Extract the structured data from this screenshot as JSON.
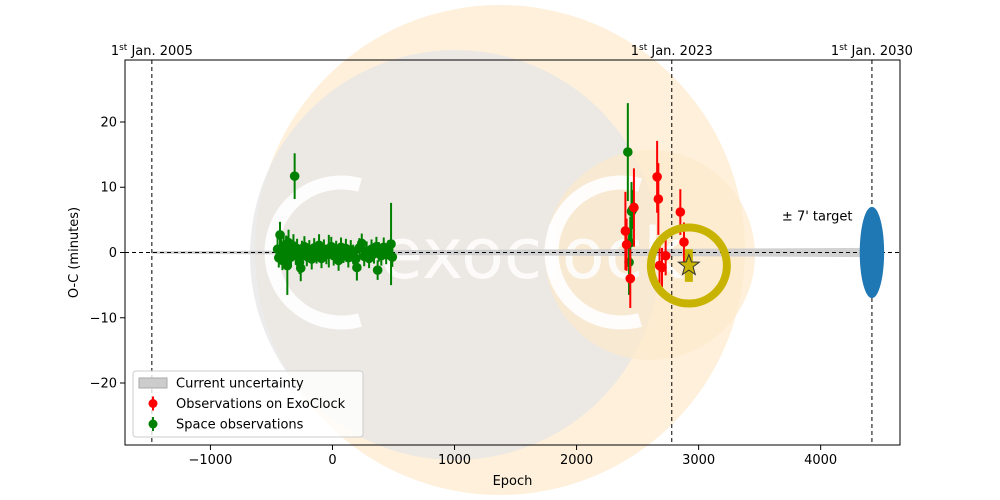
{
  "chart_data": {
    "type": "scatter",
    "title": "",
    "xlabel": "Epoch",
    "ylabel": "O-C (minutes)",
    "xlim": [
      -1700,
      4650
    ],
    "ylim": [
      -29.5,
      29.5
    ],
    "xticks": [
      -1000,
      0,
      1000,
      2000,
      3000,
      4000
    ],
    "yticks": [
      -20,
      -10,
      0,
      10,
      20
    ],
    "xtick_labels": [
      "−1000",
      "0",
      "1000",
      "2000",
      "3000",
      "4000"
    ],
    "ytick_labels": [
      "−20",
      "−10",
      "0",
      "10",
      "20"
    ],
    "date_markers": [
      {
        "label": "Jan. 2005",
        "sup": "st",
        "prefix": "1",
        "epoch": -1480
      },
      {
        "label": "Jan. 2023",
        "sup": "st",
        "prefix": "1",
        "epoch": 2780
      },
      {
        "label": "Jan. 2030",
        "sup": "st",
        "prefix": "1",
        "epoch": 4420
      }
    ],
    "target_label": "± 7' target",
    "target": {
      "epoch": 4420,
      "oc": 0,
      "half_width_epoch": 100,
      "half_height": 7,
      "color": "#1f77b4"
    },
    "prediction": {
      "epoch": 2920,
      "oc": -2,
      "error": 2.5,
      "color": "#c8b400"
    },
    "legend": {
      "position": "lower-left",
      "entries": [
        {
          "label": "Current uncertainty",
          "kind": "band",
          "color": "#cccccc"
        },
        {
          "label": "Observations on ExoClock",
          "kind": "errorbar",
          "color": "#ff0000"
        },
        {
          "label": "Space observations",
          "kind": "errorbar",
          "color": "#008000"
        }
      ]
    },
    "series": [
      {
        "name": "Space observations",
        "color": "#008000",
        "points": [
          [
            -450,
            0.5,
            2
          ],
          [
            -440,
            -0.8,
            1.5
          ],
          [
            -430,
            2.7,
            2
          ],
          [
            -420,
            0.2,
            1.8
          ],
          [
            -410,
            -1.2,
            1.5
          ],
          [
            -400,
            1.0,
            2
          ],
          [
            -390,
            -0.3,
            1.5
          ],
          [
            -380,
            0.8,
            1.8
          ],
          [
            -370,
            -2.0,
            4.5
          ],
          [
            -360,
            1.5,
            2
          ],
          [
            -350,
            0.0,
            1.5
          ],
          [
            -340,
            -0.7,
            1.5
          ],
          [
            -320,
            1.0,
            1.8
          ],
          [
            -310,
            11.7,
            3.5
          ],
          [
            -300,
            -0.4,
            1.5
          ],
          [
            -290,
            0.6,
            1.5
          ],
          [
            -270,
            -1.5,
            1.8
          ],
          [
            -260,
            -2.4,
            2
          ],
          [
            -250,
            0.3,
            1.5
          ],
          [
            -230,
            0.9,
            1.6
          ],
          [
            -210,
            -0.6,
            1.5
          ],
          [
            -190,
            0.4,
            1.5
          ],
          [
            -170,
            -1.0,
            1.6
          ],
          [
            -150,
            0.7,
            1.5
          ],
          [
            -130,
            -0.2,
            1.5
          ],
          [
            -110,
            1.1,
            1.7
          ],
          [
            -90,
            -0.9,
            1.5
          ],
          [
            -70,
            0.5,
            1.5
          ],
          [
            -50,
            -0.3,
            1.5
          ],
          [
            -30,
            0.2,
            2.5
          ],
          [
            -10,
            0.9,
            1.5
          ],
          [
            10,
            -0.5,
            1.5
          ],
          [
            30,
            0.3,
            1.5
          ],
          [
            50,
            -1.2,
            1.6
          ],
          [
            70,
            0.8,
            1.5
          ],
          [
            90,
            -0.1,
            1.5
          ],
          [
            110,
            0.6,
            1.5
          ],
          [
            130,
            -0.8,
            1.5
          ],
          [
            150,
            0.4,
            1.5
          ],
          [
            170,
            -0.3,
            1.5
          ],
          [
            190,
            -1.0,
            1.5
          ],
          [
            200,
            -2.3,
            2
          ],
          [
            220,
            0.7,
            1.5
          ],
          [
            240,
            1.4,
            1.5
          ],
          [
            260,
            -0.6,
            1.5
          ],
          [
            280,
            0.2,
            1.5
          ],
          [
            300,
            -0.9,
            1.5
          ],
          [
            320,
            0.5,
            1.5
          ],
          [
            340,
            -0.2,
            1.5
          ],
          [
            360,
            0.9,
            1.5
          ],
          [
            370,
            -2.7,
            1.5
          ],
          [
            380,
            0.1,
            1.5
          ],
          [
            400,
            -0.5,
            1.5
          ],
          [
            420,
            0.8,
            1.5
          ],
          [
            440,
            -0.3,
            1.5
          ],
          [
            460,
            0.4,
            1.5
          ],
          [
            480,
            1.3,
            6.3
          ],
          [
            490,
            -0.7,
            1.5
          ],
          [
            2420,
            15.4,
            7.5
          ],
          [
            2430,
            -1.5,
            5
          ],
          [
            2440,
            1.5,
            4
          ],
          [
            2450,
            6.3,
            4.5
          ],
          [
            2460,
            6.6,
            3
          ]
        ]
      },
      {
        "name": "Observations on ExoClock",
        "color": "#ff0000",
        "points": [
          [
            2400,
            3.3,
            6
          ],
          [
            2410,
            1.2,
            4
          ],
          [
            2440,
            -4.0,
            4.5
          ],
          [
            2470,
            6.9,
            6
          ],
          [
            2660,
            11.6,
            5.5
          ],
          [
            2670,
            8.2,
            5.5
          ],
          [
            2680,
            -2.0,
            4
          ],
          [
            2700,
            -2.3,
            3
          ],
          [
            2730,
            -0.5,
            3
          ],
          [
            2850,
            6.2,
            3.5
          ],
          [
            2880,
            1.6,
            3
          ]
        ]
      }
    ],
    "uncertainty_band": {
      "x": [
        -1480,
        4420
      ],
      "half_width_start": 0.2,
      "half_width_end": 0.7,
      "color": "#cccccc"
    },
    "watermark_text": "exoclock"
  }
}
